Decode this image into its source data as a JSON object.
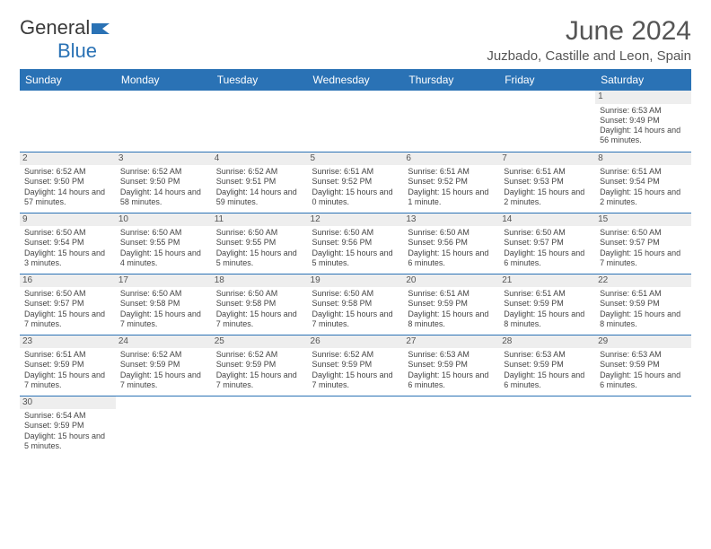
{
  "logo": {
    "text1": "General",
    "text2": "Blue",
    "flag_color": "#2a72b5"
  },
  "title": "June 2024",
  "location": "Juzbado, Castille and Leon, Spain",
  "header_bg": "#2a72b5",
  "daynum_bg": "#eeeeee",
  "border_color": "#2a72b5",
  "day_headers": [
    "Sunday",
    "Monday",
    "Tuesday",
    "Wednesday",
    "Thursday",
    "Friday",
    "Saturday"
  ],
  "weeks": [
    [
      null,
      null,
      null,
      null,
      null,
      null,
      {
        "n": "1",
        "sunrise": "Sunrise: 6:53 AM",
        "sunset": "Sunset: 9:49 PM",
        "daylight": "Daylight: 14 hours and 56 minutes."
      }
    ],
    [
      {
        "n": "2",
        "sunrise": "Sunrise: 6:52 AM",
        "sunset": "Sunset: 9:50 PM",
        "daylight": "Daylight: 14 hours and 57 minutes."
      },
      {
        "n": "3",
        "sunrise": "Sunrise: 6:52 AM",
        "sunset": "Sunset: 9:50 PM",
        "daylight": "Daylight: 14 hours and 58 minutes."
      },
      {
        "n": "4",
        "sunrise": "Sunrise: 6:52 AM",
        "sunset": "Sunset: 9:51 PM",
        "daylight": "Daylight: 14 hours and 59 minutes."
      },
      {
        "n": "5",
        "sunrise": "Sunrise: 6:51 AM",
        "sunset": "Sunset: 9:52 PM",
        "daylight": "Daylight: 15 hours and 0 minutes."
      },
      {
        "n": "6",
        "sunrise": "Sunrise: 6:51 AM",
        "sunset": "Sunset: 9:52 PM",
        "daylight": "Daylight: 15 hours and 1 minute."
      },
      {
        "n": "7",
        "sunrise": "Sunrise: 6:51 AM",
        "sunset": "Sunset: 9:53 PM",
        "daylight": "Daylight: 15 hours and 2 minutes."
      },
      {
        "n": "8",
        "sunrise": "Sunrise: 6:51 AM",
        "sunset": "Sunset: 9:54 PM",
        "daylight": "Daylight: 15 hours and 2 minutes."
      }
    ],
    [
      {
        "n": "9",
        "sunrise": "Sunrise: 6:50 AM",
        "sunset": "Sunset: 9:54 PM",
        "daylight": "Daylight: 15 hours and 3 minutes."
      },
      {
        "n": "10",
        "sunrise": "Sunrise: 6:50 AM",
        "sunset": "Sunset: 9:55 PM",
        "daylight": "Daylight: 15 hours and 4 minutes."
      },
      {
        "n": "11",
        "sunrise": "Sunrise: 6:50 AM",
        "sunset": "Sunset: 9:55 PM",
        "daylight": "Daylight: 15 hours and 5 minutes."
      },
      {
        "n": "12",
        "sunrise": "Sunrise: 6:50 AM",
        "sunset": "Sunset: 9:56 PM",
        "daylight": "Daylight: 15 hours and 5 minutes."
      },
      {
        "n": "13",
        "sunrise": "Sunrise: 6:50 AM",
        "sunset": "Sunset: 9:56 PM",
        "daylight": "Daylight: 15 hours and 6 minutes."
      },
      {
        "n": "14",
        "sunrise": "Sunrise: 6:50 AM",
        "sunset": "Sunset: 9:57 PM",
        "daylight": "Daylight: 15 hours and 6 minutes."
      },
      {
        "n": "15",
        "sunrise": "Sunrise: 6:50 AM",
        "sunset": "Sunset: 9:57 PM",
        "daylight": "Daylight: 15 hours and 7 minutes."
      }
    ],
    [
      {
        "n": "16",
        "sunrise": "Sunrise: 6:50 AM",
        "sunset": "Sunset: 9:57 PM",
        "daylight": "Daylight: 15 hours and 7 minutes."
      },
      {
        "n": "17",
        "sunrise": "Sunrise: 6:50 AM",
        "sunset": "Sunset: 9:58 PM",
        "daylight": "Daylight: 15 hours and 7 minutes."
      },
      {
        "n": "18",
        "sunrise": "Sunrise: 6:50 AM",
        "sunset": "Sunset: 9:58 PM",
        "daylight": "Daylight: 15 hours and 7 minutes."
      },
      {
        "n": "19",
        "sunrise": "Sunrise: 6:50 AM",
        "sunset": "Sunset: 9:58 PM",
        "daylight": "Daylight: 15 hours and 7 minutes."
      },
      {
        "n": "20",
        "sunrise": "Sunrise: 6:51 AM",
        "sunset": "Sunset: 9:59 PM",
        "daylight": "Daylight: 15 hours and 8 minutes."
      },
      {
        "n": "21",
        "sunrise": "Sunrise: 6:51 AM",
        "sunset": "Sunset: 9:59 PM",
        "daylight": "Daylight: 15 hours and 8 minutes."
      },
      {
        "n": "22",
        "sunrise": "Sunrise: 6:51 AM",
        "sunset": "Sunset: 9:59 PM",
        "daylight": "Daylight: 15 hours and 8 minutes."
      }
    ],
    [
      {
        "n": "23",
        "sunrise": "Sunrise: 6:51 AM",
        "sunset": "Sunset: 9:59 PM",
        "daylight": "Daylight: 15 hours and 7 minutes."
      },
      {
        "n": "24",
        "sunrise": "Sunrise: 6:52 AM",
        "sunset": "Sunset: 9:59 PM",
        "daylight": "Daylight: 15 hours and 7 minutes."
      },
      {
        "n": "25",
        "sunrise": "Sunrise: 6:52 AM",
        "sunset": "Sunset: 9:59 PM",
        "daylight": "Daylight: 15 hours and 7 minutes."
      },
      {
        "n": "26",
        "sunrise": "Sunrise: 6:52 AM",
        "sunset": "Sunset: 9:59 PM",
        "daylight": "Daylight: 15 hours and 7 minutes."
      },
      {
        "n": "27",
        "sunrise": "Sunrise: 6:53 AM",
        "sunset": "Sunset: 9:59 PM",
        "daylight": "Daylight: 15 hours and 6 minutes."
      },
      {
        "n": "28",
        "sunrise": "Sunrise: 6:53 AM",
        "sunset": "Sunset: 9:59 PM",
        "daylight": "Daylight: 15 hours and 6 minutes."
      },
      {
        "n": "29",
        "sunrise": "Sunrise: 6:53 AM",
        "sunset": "Sunset: 9:59 PM",
        "daylight": "Daylight: 15 hours and 6 minutes."
      }
    ],
    [
      {
        "n": "30",
        "sunrise": "Sunrise: 6:54 AM",
        "sunset": "Sunset: 9:59 PM",
        "daylight": "Daylight: 15 hours and 5 minutes."
      },
      null,
      null,
      null,
      null,
      null,
      null
    ]
  ]
}
